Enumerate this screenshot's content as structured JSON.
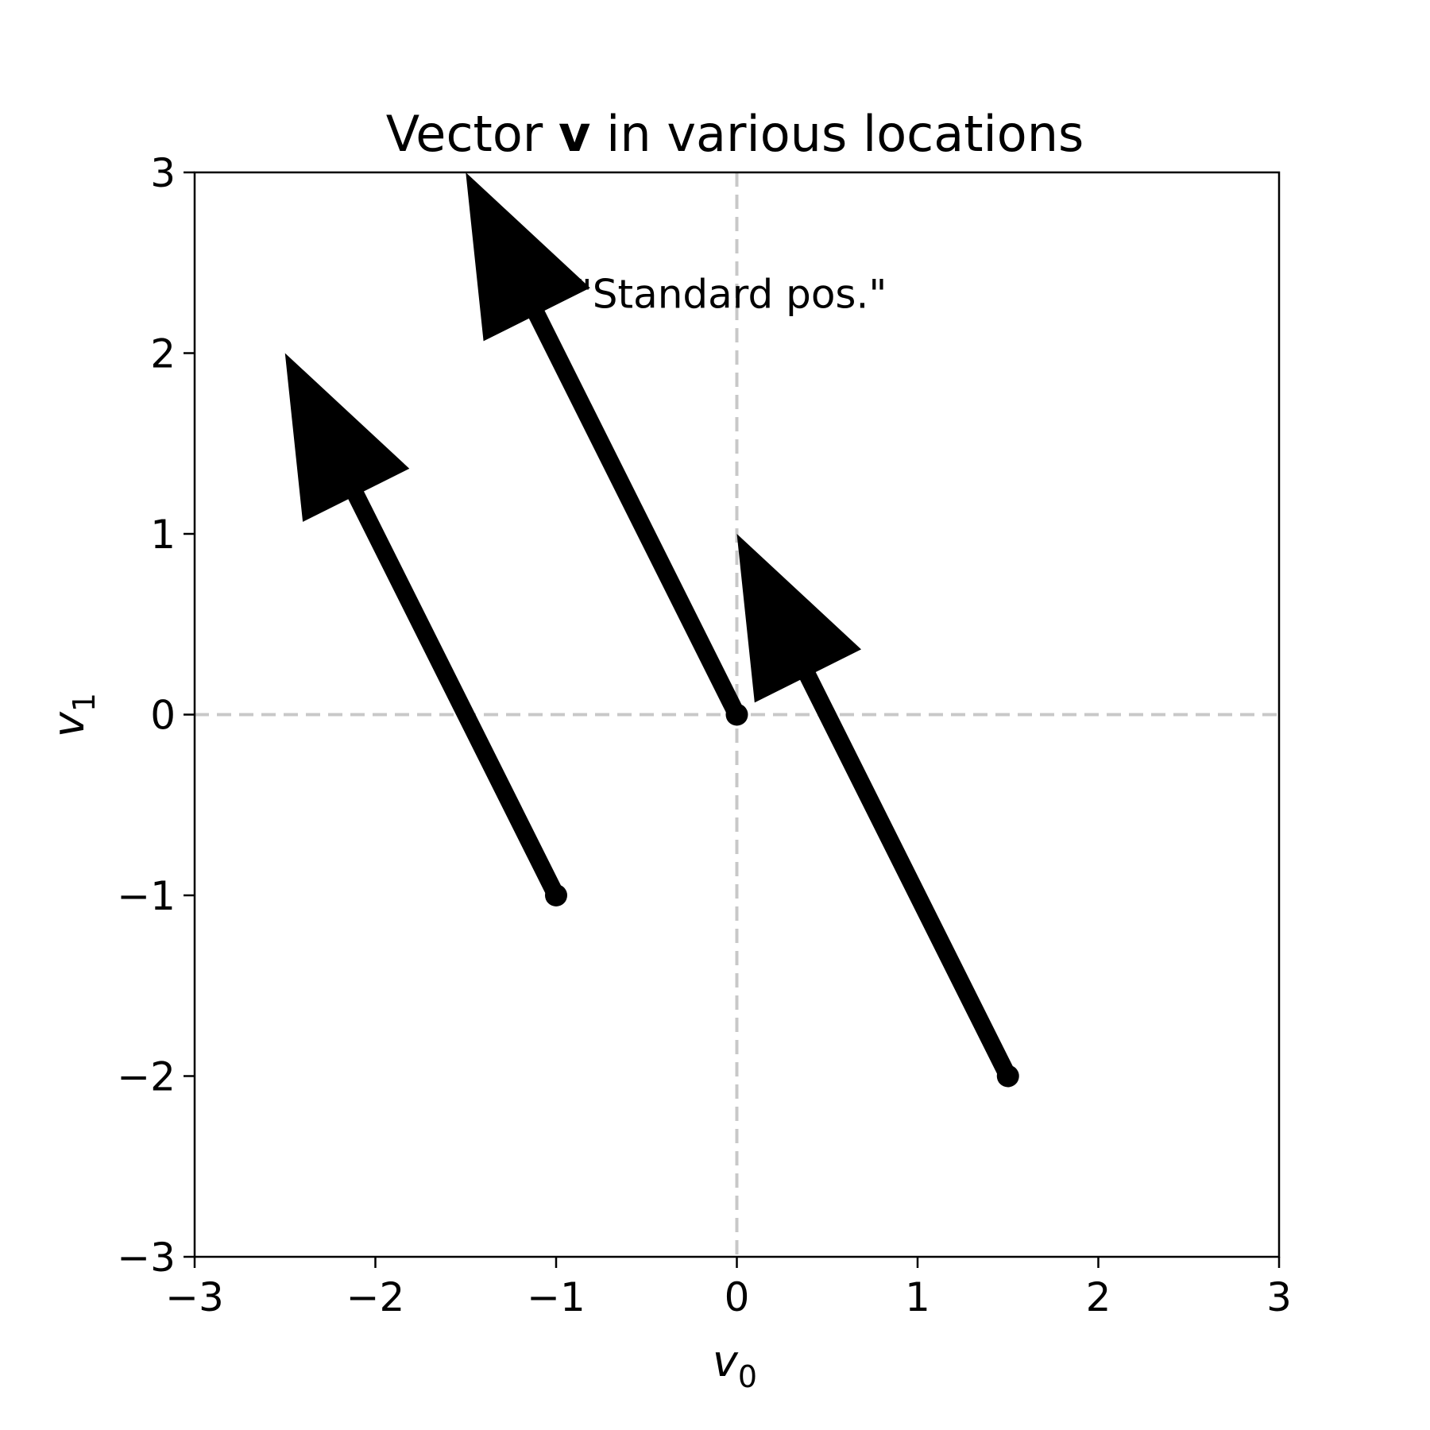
{
  "chart_data": {
    "type": "vector",
    "title": {
      "prefix": "Vector ",
      "bold": "v",
      "suffix": " in various locations"
    },
    "xlabel": {
      "main": "v",
      "sub": "0"
    },
    "ylabel": {
      "main": "v",
      "sub": "1"
    },
    "xlim": [
      -3,
      3
    ],
    "ylim": [
      -3,
      3
    ],
    "xticks": [
      {
        "value": -3,
        "label": "−3"
      },
      {
        "value": -2,
        "label": "−2"
      },
      {
        "value": -1,
        "label": "−1"
      },
      {
        "value": 0,
        "label": "0"
      },
      {
        "value": 1,
        "label": "1"
      },
      {
        "value": 2,
        "label": "2"
      },
      {
        "value": 3,
        "label": "3"
      }
    ],
    "yticks": [
      {
        "value": -3,
        "label": "−3"
      },
      {
        "value": -2,
        "label": "−2"
      },
      {
        "value": -1,
        "label": "−1"
      },
      {
        "value": 0,
        "label": "0"
      },
      {
        "value": 1,
        "label": "1"
      },
      {
        "value": 2,
        "label": "2"
      },
      {
        "value": 3,
        "label": "3"
      }
    ],
    "reference_lines": {
      "x": 0,
      "y": 0,
      "color": "#c8c8c8",
      "style": "dashed"
    },
    "vector": [
      -1.5,
      3
    ],
    "vectors": [
      {
        "start": [
          0,
          0
        ],
        "end": [
          -1.5,
          3
        ]
      },
      {
        "start": [
          -1,
          -1
        ],
        "end": [
          -2.5,
          2
        ]
      },
      {
        "start": [
          1.5,
          -2
        ],
        "end": [
          0,
          1
        ]
      }
    ],
    "annotations": [
      {
        "text": "\"Standard pos.\"",
        "x": -0.9,
        "y": 2.25
      }
    ],
    "colors": {
      "vector": "#000000",
      "axes": "#000000",
      "reference": "#c8c8c8"
    },
    "grid": false
  }
}
